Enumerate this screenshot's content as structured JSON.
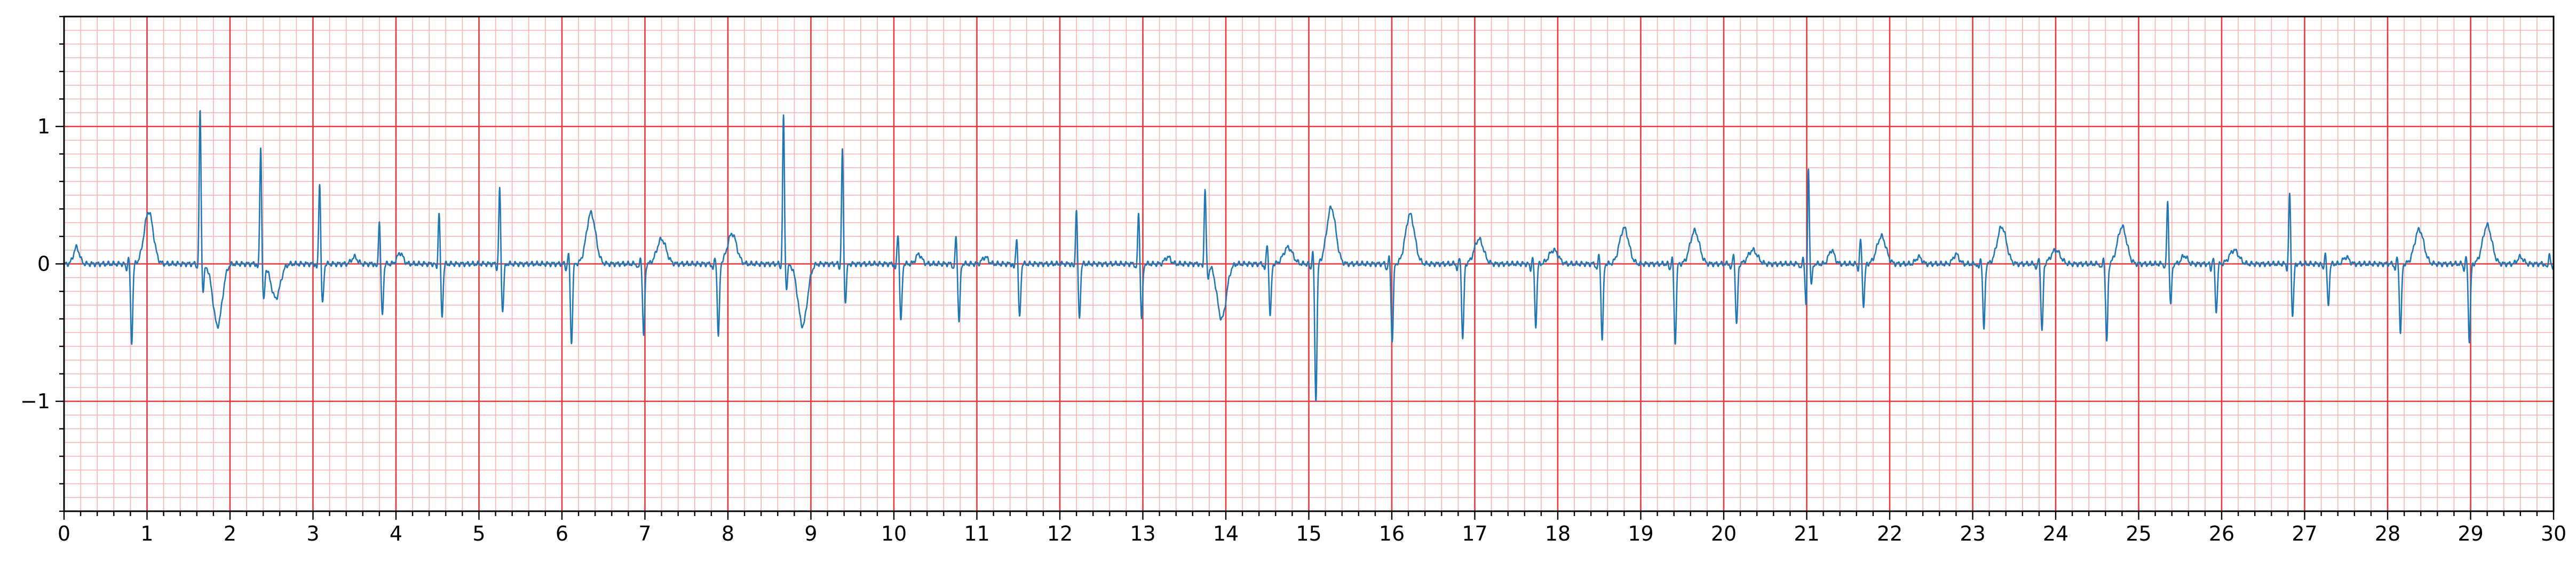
{
  "chart_data": {
    "type": "line",
    "title": "",
    "xlabel": "",
    "ylabel": "",
    "xlim": [
      0,
      30
    ],
    "ylim": [
      -1.8,
      1.8
    ],
    "x_ticks": [
      0,
      1,
      2,
      3,
      4,
      5,
      6,
      7,
      8,
      9,
      10,
      11,
      12,
      13,
      14,
      15,
      16,
      17,
      18,
      19,
      20,
      21,
      22,
      23,
      24,
      25,
      26,
      27,
      28,
      29,
      30
    ],
    "x_tick_labels": [
      "0",
      "1",
      "2",
      "3",
      "4",
      "5",
      "6",
      "7",
      "8",
      "9",
      "10",
      "11",
      "12",
      "13",
      "14",
      "15",
      "16",
      "17",
      "18",
      "19",
      "20",
      "21",
      "22",
      "23",
      "24",
      "25",
      "26",
      "27",
      "28",
      "29",
      "30"
    ],
    "y_ticks": [
      -1,
      0,
      1
    ],
    "y_tick_labels": [
      "−1",
      "0",
      "1"
    ],
    "grid": "on",
    "grid_style": "ecg paper: major grid every 1 s and 1 unit, minor grid every 0.2 s and 0.1 unit",
    "colors": {
      "trace": "#1f77b4",
      "major_grid": "#e8383d",
      "minor_grid": "#f7b3b3",
      "axes": "#000000"
    },
    "series": [
      {
        "waveform": "ecg",
        "baseline": 0.0,
        "beats": [
          {
            "t": 0.15,
            "kind": "p",
            "amp": 0.12
          },
          {
            "t": 0.78,
            "kind": "qrs",
            "r": 0.05,
            "s": -0.57
          },
          {
            "t": 1.02,
            "kind": "t",
            "amp": 0.38
          },
          {
            "t": 1.64,
            "kind": "qrs",
            "r": 1.12,
            "s": -0.2
          },
          {
            "t": 1.85,
            "kind": "t",
            "amp": -0.45
          },
          {
            "t": 2.37,
            "kind": "qrs",
            "r": 0.86,
            "s": -0.27
          },
          {
            "t": 2.55,
            "kind": "t",
            "amp": -0.25
          },
          {
            "t": 3.08,
            "kind": "qrs",
            "r": 0.6,
            "s": -0.3
          },
          {
            "t": 3.5,
            "kind": "p",
            "amp": 0.05
          },
          {
            "t": 3.8,
            "kind": "qrs",
            "r": 0.32,
            "s": -0.38
          },
          {
            "t": 4.05,
            "kind": "p",
            "amp": 0.08
          },
          {
            "t": 4.52,
            "kind": "qrs",
            "r": 0.38,
            "s": -0.38
          },
          {
            "t": 5.25,
            "kind": "qrs",
            "r": 0.55,
            "s": -0.35
          },
          {
            "t": 6.08,
            "kind": "qrs",
            "r": 0.08,
            "s": -0.58
          },
          {
            "t": 6.35,
            "kind": "t",
            "amp": 0.37
          },
          {
            "t": 6.95,
            "kind": "qrs",
            "r": 0.05,
            "s": -0.53
          },
          {
            "t": 7.2,
            "kind": "t",
            "amp": 0.18
          },
          {
            "t": 7.85,
            "kind": "qrs",
            "r": 0.05,
            "s": -0.53
          },
          {
            "t": 8.05,
            "kind": "t",
            "amp": 0.22
          },
          {
            "t": 8.67,
            "kind": "qrs",
            "r": 1.07,
            "s": -0.18
          },
          {
            "t": 8.9,
            "kind": "t",
            "amp": -0.45
          },
          {
            "t": 9.38,
            "kind": "qrs",
            "r": 0.83,
            "s": -0.28
          },
          {
            "t": 10.05,
            "kind": "qrs",
            "r": 0.23,
            "s": -0.42
          },
          {
            "t": 10.3,
            "kind": "p",
            "amp": 0.07
          },
          {
            "t": 10.75,
            "kind": "qrs",
            "r": 0.2,
            "s": -0.42
          },
          {
            "t": 11.1,
            "kind": "p",
            "amp": 0.05
          },
          {
            "t": 11.48,
            "kind": "qrs",
            "r": 0.2,
            "s": -0.4
          },
          {
            "t": 12.2,
            "kind": "qrs",
            "r": 0.4,
            "s": -0.4
          },
          {
            "t": 12.95,
            "kind": "qrs",
            "r": 0.38,
            "s": -0.4
          },
          {
            "t": 13.3,
            "kind": "p",
            "amp": 0.05
          },
          {
            "t": 13.75,
            "kind": "qrs",
            "r": 0.55,
            "s": -0.1
          },
          {
            "t": 13.95,
            "kind": "t",
            "amp": -0.4
          },
          {
            "t": 14.5,
            "kind": "qrs",
            "r": 0.15,
            "s": -0.38
          },
          {
            "t": 14.75,
            "kind": "t",
            "amp": 0.12
          },
          {
            "t": 15.05,
            "kind": "qrs",
            "r": 0.1,
            "s": -1.0
          },
          {
            "t": 15.27,
            "kind": "t",
            "amp": 0.41
          },
          {
            "t": 15.97,
            "kind": "qrs",
            "r": 0.05,
            "s": -0.56
          },
          {
            "t": 16.22,
            "kind": "t",
            "amp": 0.36
          },
          {
            "t": 16.82,
            "kind": "qrs",
            "r": 0.05,
            "s": -0.55
          },
          {
            "t": 17.05,
            "kind": "t",
            "amp": 0.18
          },
          {
            "t": 17.7,
            "kind": "qrs",
            "r": 0.05,
            "s": -0.45
          },
          {
            "t": 17.95,
            "kind": "t",
            "amp": 0.1
          },
          {
            "t": 18.5,
            "kind": "qrs",
            "r": 0.07,
            "s": -0.55
          },
          {
            "t": 18.8,
            "kind": "t",
            "amp": 0.26
          },
          {
            "t": 19.38,
            "kind": "qrs",
            "r": 0.05,
            "s": -0.58
          },
          {
            "t": 19.65,
            "kind": "t",
            "amp": 0.24
          },
          {
            "t": 20.12,
            "kind": "qrs",
            "r": 0.08,
            "s": -0.45
          },
          {
            "t": 20.35,
            "kind": "t",
            "amp": 0.1
          },
          {
            "t": 20.96,
            "kind": "qrs",
            "r": 0.05,
            "s": -0.3
          },
          {
            "t": 21.02,
            "kind": "qrs",
            "r": 0.74,
            "s": -0.15
          },
          {
            "t": 21.3,
            "kind": "p",
            "amp": 0.1
          },
          {
            "t": 21.65,
            "kind": "qrs",
            "r": 0.18,
            "s": -0.3
          },
          {
            "t": 21.9,
            "kind": "t",
            "amp": 0.2
          },
          {
            "t": 22.35,
            "kind": "p",
            "amp": 0.05
          },
          {
            "t": 22.8,
            "kind": "p",
            "amp": 0.07
          },
          {
            "t": 23.1,
            "kind": "qrs",
            "r": 0.05,
            "s": -0.48
          },
          {
            "t": 23.35,
            "kind": "t",
            "amp": 0.27
          },
          {
            "t": 23.8,
            "kind": "qrs",
            "r": 0.05,
            "s": -0.5
          },
          {
            "t": 24.0,
            "kind": "t",
            "amp": 0.1
          },
          {
            "t": 24.58,
            "kind": "qrs",
            "r": 0.05,
            "s": -0.57
          },
          {
            "t": 24.8,
            "kind": "t",
            "amp": 0.27
          },
          {
            "t": 25.35,
            "kind": "qrs",
            "r": 0.46,
            "s": -0.3
          },
          {
            "t": 25.55,
            "kind": "p",
            "amp": 0.06
          },
          {
            "t": 25.9,
            "kind": "qrs",
            "r": 0.05,
            "s": -0.35
          },
          {
            "t": 26.15,
            "kind": "t",
            "amp": 0.1
          },
          {
            "t": 26.82,
            "kind": "qrs",
            "r": 0.52,
            "s": -0.38
          },
          {
            "t": 27.25,
            "kind": "qrs",
            "r": 0.08,
            "s": -0.3
          },
          {
            "t": 27.5,
            "kind": "p",
            "amp": 0.05
          },
          {
            "t": 28.12,
            "kind": "qrs",
            "r": 0.05,
            "s": -0.5
          },
          {
            "t": 28.38,
            "kind": "t",
            "amp": 0.25
          },
          {
            "t": 28.95,
            "kind": "qrs",
            "r": 0.05,
            "s": -0.56
          },
          {
            "t": 29.2,
            "kind": "t",
            "amp": 0.28
          },
          {
            "t": 29.6,
            "kind": "p",
            "amp": 0.05
          },
          {
            "t": 29.95,
            "kind": "qrs",
            "r": 0.08,
            "s": -0.04
          }
        ]
      }
    ]
  }
}
